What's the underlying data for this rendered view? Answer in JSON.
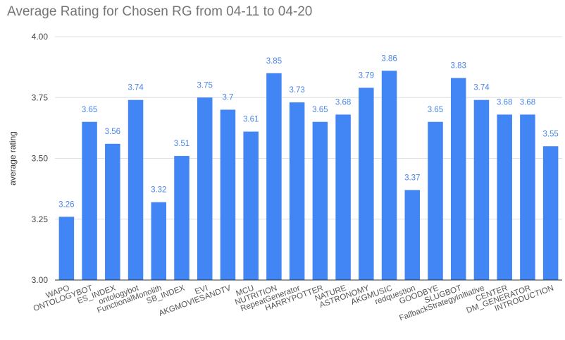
{
  "chart_data": {
    "type": "bar",
    "title": "Average Rating for Chosen RG from 04-11 to 04-20",
    "xlabel": "",
    "ylabel": "average rating",
    "ylim": [
      3.0,
      4.0
    ],
    "yticks": [
      "3.00",
      "3.25",
      "3.50",
      "3.75",
      "4.00"
    ],
    "grid": true,
    "legend": "none",
    "bar_color": "#4285f4",
    "label_color": "#4a86e8",
    "categories": [
      "WAPO",
      "ONTOLOGYBOT",
      "ES_INDEX",
      "ontologybot",
      "FunctionalMonolith",
      "SB_INDEX",
      "EVI",
      "AKGMOVIESANDTV",
      "MCU",
      "NUTRITION",
      "RepeatGenerator",
      "HARRYPOTTER",
      "NATURE",
      "ASTRONOMY",
      "AKGMUSIC",
      "redquestion",
      "GOODBYE",
      "SLUGBOT",
      "FallbackStrategyInitiative",
      "CENTER",
      "DM_GENERATOR",
      "INTRODUCTION"
    ],
    "values": [
      3.26,
      3.65,
      3.56,
      3.74,
      3.32,
      3.51,
      3.75,
      3.7,
      3.61,
      3.85,
      3.73,
      3.65,
      3.68,
      3.79,
      3.86,
      3.37,
      3.65,
      3.83,
      3.74,
      3.68,
      3.68,
      3.55
    ],
    "value_labels": [
      "3.26",
      "3.65",
      "3.56",
      "3.74",
      "3.32",
      "3.51",
      "3.75",
      "3.7",
      "3.61",
      "3.85",
      "3.73",
      "3.65",
      "3.68",
      "3.79",
      "3.86",
      "3.37",
      "3.65",
      "3.83",
      "3.74",
      "3.68",
      "3.68",
      "3.55"
    ]
  }
}
